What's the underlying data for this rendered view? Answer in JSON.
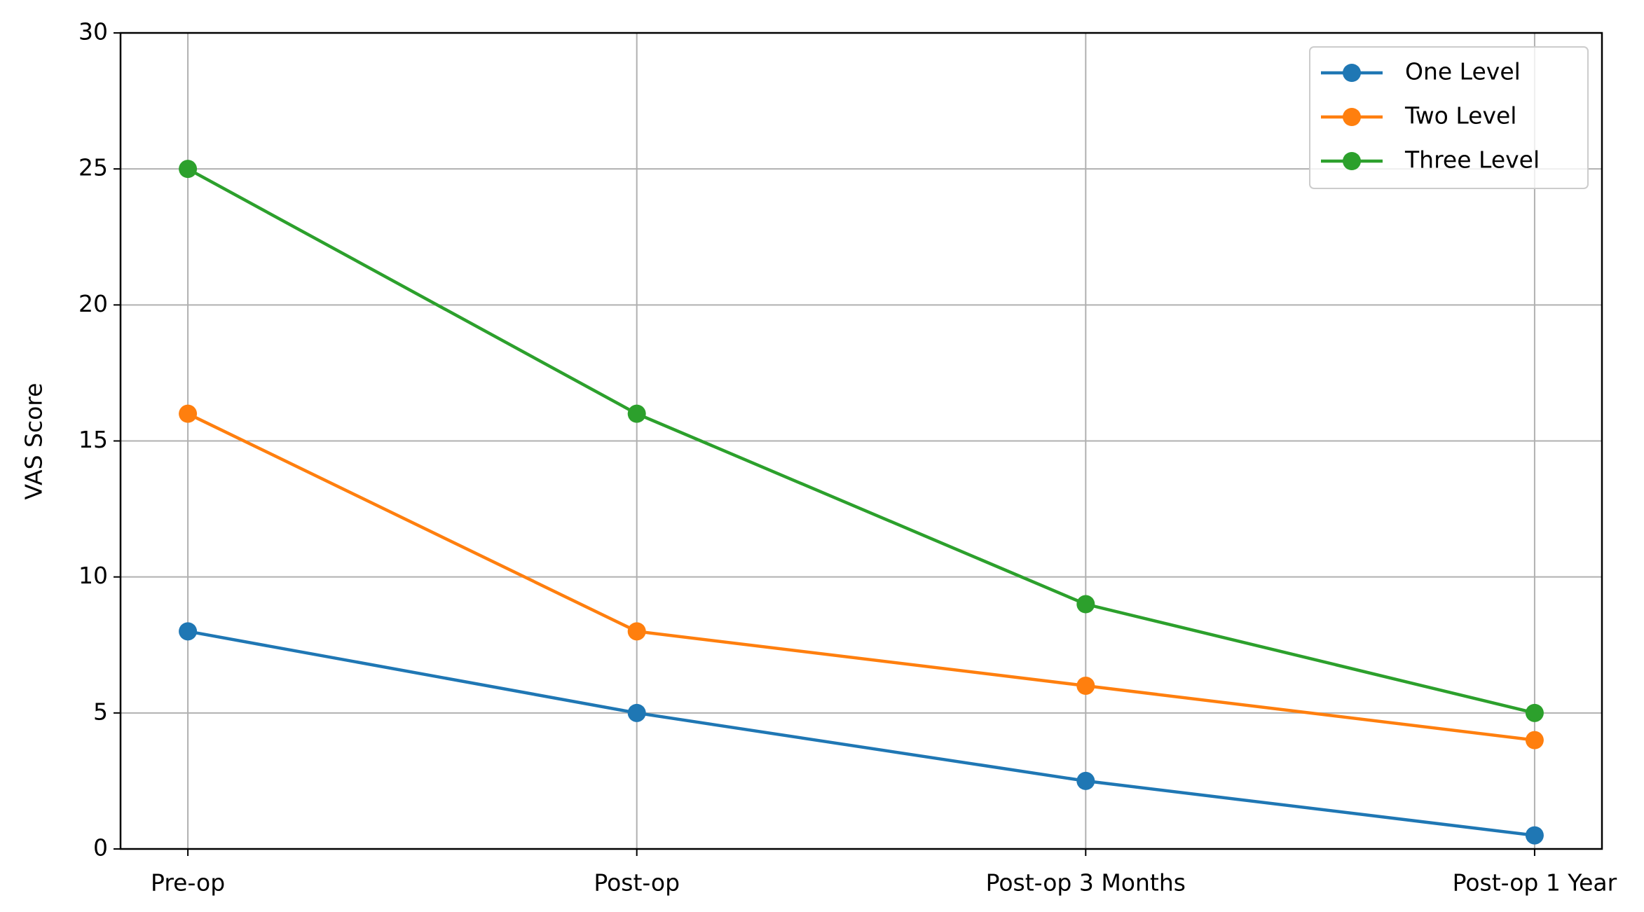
{
  "chart_data": {
    "type": "line",
    "y_label": "VAS Score",
    "categories": [
      "Pre-op",
      "Post-op",
      "Post-op 3 Months",
      "Post-op 1 Year"
    ],
    "series": [
      {
        "name": "One Level",
        "color": "#1f77b4",
        "values": [
          8,
          5,
          2.5,
          0.5
        ]
      },
      {
        "name": "Two Level",
        "color": "#ff7f0e",
        "values": [
          16,
          8,
          6,
          4
        ]
      },
      {
        "name": "Three Level",
        "color": "#2ca02c",
        "values": [
          25,
          16,
          9,
          5
        ]
      }
    ],
    "ylim": [
      0,
      30
    ],
    "yticks": [
      0,
      5,
      10,
      15,
      20,
      25,
      30
    ],
    "grid": true,
    "legend": "upper right"
  }
}
